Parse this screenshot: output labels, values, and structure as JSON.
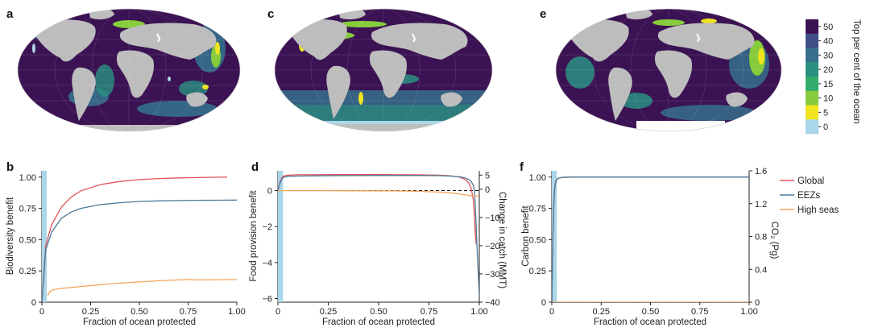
{
  "colors": {
    "ocean_dark": "#3b1253",
    "land": "#bdbdbd",
    "global": "#e0535a",
    "eezs": "#4a7a99",
    "high_seas": "#f2a45c",
    "highlight": "#a9d6e8"
  },
  "map_panels": [
    {
      "label": "a"
    },
    {
      "label": "c"
    },
    {
      "label": "e"
    }
  ],
  "colorbar": {
    "title": "Top per cent of the ocean",
    "ticks": [
      "50",
      "40",
      "30",
      "20",
      "15",
      "10",
      "5",
      "0"
    ],
    "colors": [
      "#3b1253",
      "#404e85",
      "#36708c",
      "#2a9182",
      "#33ad6e",
      "#86cc3c",
      "#f0e31f",
      "#a9d6e8"
    ]
  },
  "legend": [
    {
      "name": "Global",
      "color": "#e0535a"
    },
    {
      "name": "EEZs",
      "color": "#4a7a99"
    },
    {
      "name": "High seas",
      "color": "#f2a45c"
    }
  ],
  "chart_data": [
    {
      "panel": "b",
      "type": "line",
      "xlabel": "Fraction of ocean protected",
      "ylabel": "Biodiversity benefit",
      "xlim": [
        0,
        1
      ],
      "ylim": [
        0,
        1.05
      ],
      "xticks": [
        "0",
        "0.25",
        "0.50",
        "0.75",
        "1.00"
      ],
      "yticks": [
        "0",
        "0.25",
        "0.50",
        "0.75",
        "1.00"
      ],
      "highlight_x": [
        0,
        0.025
      ],
      "series": [
        {
          "name": "Global",
          "x": [
            0,
            0.02,
            0.05,
            0.1,
            0.15,
            0.2,
            0.3,
            0.4,
            0.5,
            0.6,
            0.7,
            0.8,
            0.9,
            0.95
          ],
          "y": [
            0,
            0.45,
            0.62,
            0.76,
            0.84,
            0.89,
            0.94,
            0.965,
            0.98,
            0.988,
            0.993,
            0.996,
            0.999,
            1.0
          ]
        },
        {
          "name": "EEZs",
          "x": [
            0,
            0.02,
            0.05,
            0.1,
            0.15,
            0.2,
            0.3,
            0.4,
            0.5,
            0.6,
            0.7,
            0.8,
            0.9,
            1.0
          ],
          "y": [
            0,
            0.42,
            0.56,
            0.67,
            0.72,
            0.75,
            0.78,
            0.795,
            0.805,
            0.81,
            0.812,
            0.814,
            0.815,
            0.816
          ]
        },
        {
          "name": "High seas",
          "x": [
            0.03,
            0.04,
            0.06,
            0.1,
            0.2,
            0.3,
            0.4,
            0.5,
            0.6,
            0.7,
            0.75,
            0.8,
            0.9,
            1.0
          ],
          "y": [
            0.05,
            0.085,
            0.1,
            0.11,
            0.125,
            0.14,
            0.152,
            0.162,
            0.171,
            0.178,
            0.181,
            0.178,
            0.18,
            0.181
          ]
        }
      ]
    },
    {
      "panel": "d",
      "type": "line",
      "xlabel": "Fraction of ocean protected",
      "ylabel": "Food provision benefit",
      "ylabel_right": "Change in catch (MMT)",
      "xlim": [
        0,
        1
      ],
      "ylim": [
        -6.2,
        1.1
      ],
      "ylim_right": [
        -40,
        6.5
      ],
      "xticks": [
        "0",
        "0.25",
        "0.50",
        "0.75",
        "1.00"
      ],
      "yticks": [
        "-6",
        "-4",
        "-2",
        "0"
      ],
      "yticks_right": [
        "-40",
        "-30",
        "-20",
        "-10",
        "0",
        "5"
      ],
      "highlight_x": [
        0,
        0.025
      ],
      "zero_line": "dashed",
      "series": [
        {
          "name": "Global",
          "x": [
            0,
            0.01,
            0.02,
            0.03,
            0.05,
            0.1,
            0.3,
            0.5,
            0.7,
            0.8,
            0.85,
            0.9,
            0.93,
            0.95,
            0.96,
            0.97,
            0.975,
            0.98,
            0.985
          ],
          "y": [
            0,
            0.45,
            0.72,
            0.82,
            0.86,
            0.88,
            0.89,
            0.89,
            0.88,
            0.86,
            0.83,
            0.76,
            0.62,
            0.4,
            0.1,
            -0.5,
            -1.3,
            -2.4,
            -3.0
          ]
        },
        {
          "name": "EEZs",
          "x": [
            0,
            0.01,
            0.02,
            0.03,
            0.05,
            0.1,
            0.3,
            0.5,
            0.7,
            0.8,
            0.85,
            0.9,
            0.93,
            0.95,
            0.96,
            0.97,
            0.975,
            0.98,
            0.99,
            1.0
          ],
          "y": [
            0,
            0.4,
            0.65,
            0.75,
            0.79,
            0.81,
            0.83,
            0.84,
            0.84,
            0.83,
            0.81,
            0.77,
            0.71,
            0.6,
            0.5,
            0.3,
            0.0,
            -0.8,
            -3.5,
            -5.8
          ]
        },
        {
          "name": "High seas",
          "x": [
            0,
            0.2,
            0.4,
            0.6,
            0.7,
            0.8,
            0.85,
            0.9,
            0.93,
            0.96,
            0.98,
            1.0
          ],
          "y": [
            0,
            0.0,
            -0.01,
            -0.02,
            -0.04,
            -0.08,
            -0.12,
            -0.18,
            -0.24,
            -0.28,
            -0.3,
            -0.32
          ]
        }
      ]
    },
    {
      "panel": "f",
      "type": "line",
      "xlabel": "Fraction of ocean protected",
      "ylabel": "Carbon benefit",
      "ylabel_right": "CO₂ (Pg)",
      "xlim": [
        0,
        1
      ],
      "ylim": [
        0,
        1.05
      ],
      "ylim_right": [
        0,
        1.6
      ],
      "xticks": [
        "0",
        "0.25",
        "0.50",
        "0.75",
        "1.00"
      ],
      "yticks": [
        "0",
        "0.25",
        "0.50",
        "0.75",
        "1.00"
      ],
      "yticks_right": [
        "0",
        "0.4",
        "0.8",
        "1.2",
        "1.6"
      ],
      "highlight_x": [
        0,
        0.025
      ],
      "zero_line": "dashed",
      "series": [
        {
          "name": "Global",
          "x": [
            0,
            0.005,
            0.01,
            0.015,
            0.02,
            0.03,
            0.05,
            0.1,
            0.5,
            1.0
          ],
          "y": [
            0,
            0.5,
            0.8,
            0.92,
            0.97,
            0.99,
            0.998,
            1.0,
            1.0,
            1.0
          ]
        },
        {
          "name": "EEZs",
          "x": [
            0,
            0.005,
            0.01,
            0.015,
            0.02,
            0.03,
            0.05,
            0.1,
            0.5,
            1.0
          ],
          "y": [
            0,
            0.48,
            0.78,
            0.91,
            0.965,
            0.988,
            0.997,
            1.0,
            1.0,
            1.0
          ]
        },
        {
          "name": "High seas",
          "x": [
            0,
            0.5,
            1.0
          ],
          "y": [
            0,
            0,
            0
          ]
        }
      ]
    }
  ]
}
